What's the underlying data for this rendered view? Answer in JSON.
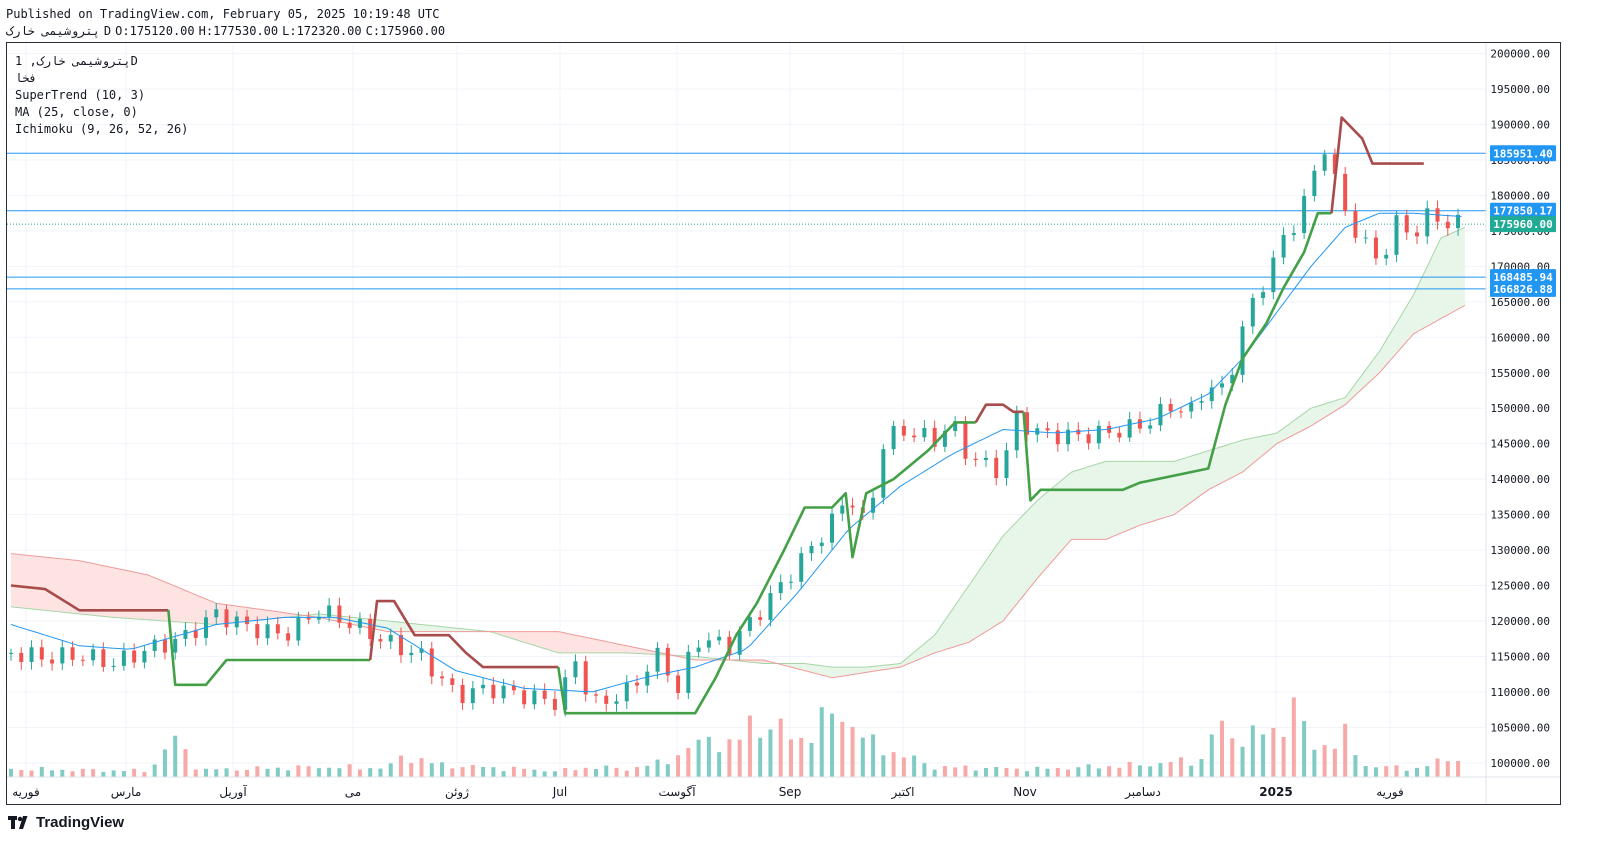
{
  "header": {
    "published": "Published on TradingView.com, February 05, 2025 10:19:48 UTC",
    "symbol": "پتروشیمی خارک",
    "timeframe": "D",
    "ohlc": {
      "open": "O:175120.00",
      "high": "H:177530.00",
      "low": "L:172320.00",
      "close": "C:175960.00"
    }
  },
  "legend": {
    "title": "پتروشیمی خارک, 1D",
    "subtitle": "فخا",
    "indicators": [
      "SuperTrend (10, 3)",
      "MA (25, close, 0)",
      "Ichimoku (9, 26, 52, 26)"
    ]
  },
  "footer": {
    "brand": "TradingView"
  },
  "colors": {
    "up": "#26a69a",
    "down": "#ef5350",
    "vol_up": "#80cbc4",
    "vol_down": "#f7a9a7",
    "st_up": "#43a047",
    "st_down": "#a84b4b",
    "ma": "#2196f3",
    "hline": "#2196f3",
    "cloud_up": "#e8f5e9",
    "cloud_down": "#fde4e2",
    "span_a": "#a5d6a7",
    "span_b": "#ef9a9a"
  },
  "chart_data": {
    "type": "candlestick",
    "y_axis": {
      "ticks": [
        100000,
        105000,
        110000,
        115000,
        120000,
        125000,
        130000,
        135000,
        140000,
        145000,
        150000,
        155000,
        160000,
        165000,
        170000,
        175000,
        180000,
        185000,
        190000,
        195000,
        200000
      ],
      "tick_labels": [
        "100000.00",
        "105000.00",
        "110000.00",
        "115000.00",
        "120000.00",
        "125000.00",
        "130000.00",
        "135000.00",
        "140000.00",
        "145000.00",
        "150000.00",
        "155000.00",
        "160000.00",
        "165000.00",
        "170000.00",
        "175000.00",
        "180000.00",
        "185000.00",
        "190000.00",
        "195000.00",
        "200000.00"
      ],
      "ylim": [
        98000,
        201500
      ]
    },
    "x_axis": {
      "labels": [
        "فوریه",
        "مارس",
        "آوریل",
        "می",
        "ژوئن",
        "Jul",
        "آگوست",
        "Sep",
        "اکتبر",
        "Nov",
        "دسامبر",
        "2025",
        "فوریه"
      ]
    },
    "horizontal_lines": [
      {
        "value": 185951.4,
        "label": "185951.40"
      },
      {
        "value": 177850.17,
        "label": "177850.17"
      },
      {
        "value": 168485.94,
        "label": "168485.94"
      },
      {
        "value": 166826.88,
        "label": "166826.88"
      }
    ],
    "last_price": {
      "value": 175960.0,
      "label": "175960.00"
    },
    "close_path": [
      {
        "i": 0,
        "v": 115500
      },
      {
        "i": 10,
        "v": 114800
      },
      {
        "i": 20,
        "v": 115200
      },
      {
        "i": 30,
        "v": 114000
      },
      {
        "i": 40,
        "v": 116000
      },
      {
        "i": 50,
        "v": 117500
      },
      {
        "i": 60,
        "v": 121000
      },
      {
        "i": 70,
        "v": 119000
      },
      {
        "i": 80,
        "v": 118000
      },
      {
        "i": 90,
        "v": 121500
      },
      {
        "i": 100,
        "v": 119500
      },
      {
        "i": 110,
        "v": 117000
      },
      {
        "i": 120,
        "v": 115000
      },
      {
        "i": 130,
        "v": 109500
      },
      {
        "i": 140,
        "v": 110500
      },
      {
        "i": 150,
        "v": 109500
      },
      {
        "i": 160,
        "v": 108500
      },
      {
        "i": 165,
        "v": 114500
      },
      {
        "i": 170,
        "v": 108000
      },
      {
        "i": 180,
        "v": 110000
      },
      {
        "i": 190,
        "v": 115500
      },
      {
        "i": 195,
        "v": 110000
      },
      {
        "i": 200,
        "v": 117500
      },
      {
        "i": 210,
        "v": 116500
      },
      {
        "i": 220,
        "v": 122000
      },
      {
        "i": 230,
        "v": 128000
      },
      {
        "i": 240,
        "v": 134000
      },
      {
        "i": 245,
        "v": 138000
      },
      {
        "i": 250,
        "v": 133000
      },
      {
        "i": 255,
        "v": 145000
      },
      {
        "i": 260,
        "v": 147000
      },
      {
        "i": 270,
        "v": 145500
      },
      {
        "i": 275,
        "v": 148000
      },
      {
        "i": 280,
        "v": 143000
      },
      {
        "i": 290,
        "v": 141000
      },
      {
        "i": 293,
        "v": 149000
      },
      {
        "i": 300,
        "v": 146500
      },
      {
        "i": 310,
        "v": 146000
      },
      {
        "i": 320,
        "v": 146500
      },
      {
        "i": 330,
        "v": 147500
      },
      {
        "i": 340,
        "v": 150500
      },
      {
        "i": 345,
        "v": 149500
      },
      {
        "i": 350,
        "v": 153500
      },
      {
        "i": 355,
        "v": 152000
      },
      {
        "i": 360,
        "v": 161500
      },
      {
        "i": 365,
        "v": 166500
      },
      {
        "i": 370,
        "v": 172000
      },
      {
        "i": 375,
        "v": 176000
      },
      {
        "i": 380,
        "v": 181500
      },
      {
        "i": 385,
        "v": 188500
      },
      {
        "i": 388,
        "v": 179000
      },
      {
        "i": 392,
        "v": 176000
      },
      {
        "i": 396,
        "v": 173000
      },
      {
        "i": 400,
        "v": 170500
      },
      {
        "i": 405,
        "v": 176000
      },
      {
        "i": 410,
        "v": 174500
      },
      {
        "i": 415,
        "v": 177500
      },
      {
        "i": 420,
        "v": 176000
      },
      {
        "i": 425,
        "v": 175960
      }
    ],
    "supertrend": {
      "segments": [
        {
          "trend": "down",
          "points": [
            [
              0,
              125000
            ],
            [
              10,
              124500
            ],
            [
              20,
              121500
            ],
            [
              46,
              121500
            ]
          ]
        },
        {
          "trend": "up",
          "points": [
            [
              46,
              121500
            ],
            [
              48,
              111000
            ],
            [
              57,
              111000
            ],
            [
              63,
              114500
            ],
            [
              105,
              114500
            ]
          ]
        },
        {
          "trend": "down",
          "points": [
            [
              105,
              114500
            ],
            [
              107,
              122800
            ],
            [
              112,
              122800
            ],
            [
              118,
              118000
            ],
            [
              128,
              118000
            ],
            [
              133,
              115500
            ],
            [
              138,
              113500
            ],
            [
              160,
              113500
            ]
          ]
        },
        {
          "trend": "up",
          "points": [
            [
              160,
              113500
            ],
            [
              162,
              107000
            ],
            [
              200,
              107000
            ],
            [
              206,
              112000
            ],
            [
              212,
              118000
            ],
            [
              218,
              122500
            ],
            [
              226,
              130000
            ],
            [
              232,
              136000
            ],
            [
              240,
              136000
            ],
            [
              244,
              138000
            ],
            [
              246,
              129000
            ],
            [
              250,
              138000
            ],
            [
              258,
              140000
            ],
            [
              268,
              144000
            ],
            [
              276,
              148000
            ],
            [
              282,
              148000
            ]
          ]
        },
        {
          "trend": "down",
          "points": [
            [
              282,
              148000
            ],
            [
              285,
              150500
            ],
            [
              290,
              150500
            ],
            [
              293,
              149500
            ],
            [
              296,
              149500
            ]
          ]
        },
        {
          "trend": "up",
          "points": [
            [
              296,
              149500
            ],
            [
              298,
              137000
            ],
            [
              301,
              138500
            ],
            [
              325,
              138500
            ],
            [
              330,
              139500
            ],
            [
              340,
              140500
            ],
            [
              350,
              141500
            ],
            [
              355,
              150500
            ],
            [
              360,
              157000
            ],
            [
              367,
              162000
            ],
            [
              372,
              167000
            ],
            [
              378,
              172000
            ],
            [
              382,
              177500
            ],
            [
              386,
              177500
            ]
          ]
        },
        {
          "trend": "down",
          "points": [
            [
              386,
              177500
            ],
            [
              389,
              191000
            ],
            [
              395,
              188000
            ],
            [
              398,
              184500
            ],
            [
              413,
              184500
            ]
          ]
        }
      ]
    },
    "ma25_path": [
      [
        0,
        119500
      ],
      [
        20,
        116500
      ],
      [
        35,
        116000
      ],
      [
        60,
        119500
      ],
      [
        80,
        120500
      ],
      [
        95,
        120500
      ],
      [
        110,
        119000
      ],
      [
        130,
        113000
      ],
      [
        150,
        110500
      ],
      [
        170,
        110000
      ],
      [
        185,
        112000
      ],
      [
        200,
        113500
      ],
      [
        215,
        116000
      ],
      [
        230,
        124000
      ],
      [
        245,
        133000
      ],
      [
        260,
        139000
      ],
      [
        275,
        143500
      ],
      [
        290,
        147000
      ],
      [
        305,
        146500
      ],
      [
        320,
        147000
      ],
      [
        335,
        148500
      ],
      [
        350,
        152000
      ],
      [
        360,
        157000
      ],
      [
        370,
        163500
      ],
      [
        380,
        170000
      ],
      [
        390,
        175500
      ],
      [
        400,
        177500
      ],
      [
        410,
        177500
      ],
      [
        425,
        177000
      ]
    ],
    "span_a_path": [
      [
        0,
        122000
      ],
      [
        30,
        120500
      ],
      [
        60,
        119500
      ],
      [
        90,
        121000
      ],
      [
        110,
        120000
      ],
      [
        140,
        118500
      ],
      [
        160,
        115500
      ],
      [
        180,
        115500
      ],
      [
        200,
        115000
      ],
      [
        220,
        114000
      ],
      [
        232,
        114000
      ],
      [
        240,
        113500
      ],
      [
        250,
        113500
      ],
      [
        260,
        114000
      ],
      [
        270,
        118000
      ],
      [
        280,
        125000
      ],
      [
        290,
        132000
      ],
      [
        300,
        137000
      ],
      [
        310,
        141000
      ],
      [
        320,
        142500
      ],
      [
        340,
        142500
      ],
      [
        350,
        144000
      ],
      [
        360,
        145500
      ],
      [
        370,
        146500
      ],
      [
        380,
        150000
      ],
      [
        390,
        151500
      ],
      [
        400,
        158000
      ],
      [
        410,
        166000
      ],
      [
        418,
        174000
      ],
      [
        425,
        175500
      ]
    ],
    "span_b_path": [
      [
        0,
        129500
      ],
      [
        20,
        128500
      ],
      [
        40,
        126500
      ],
      [
        60,
        122500
      ],
      [
        90,
        120500
      ],
      [
        110,
        118500
      ],
      [
        140,
        118500
      ],
      [
        160,
        118500
      ],
      [
        180,
        116500
      ],
      [
        200,
        114500
      ],
      [
        220,
        114500
      ],
      [
        240,
        112000
      ],
      [
        260,
        113500
      ],
      [
        270,
        115500
      ],
      [
        280,
        117000
      ],
      [
        290,
        120000
      ],
      [
        300,
        126000
      ],
      [
        310,
        131500
      ],
      [
        320,
        131500
      ],
      [
        330,
        133500
      ],
      [
        340,
        135000
      ],
      [
        350,
        138500
      ],
      [
        360,
        141000
      ],
      [
        370,
        145000
      ],
      [
        380,
        147500
      ],
      [
        390,
        150500
      ],
      [
        400,
        155000
      ],
      [
        410,
        160500
      ],
      [
        425,
        164500
      ]
    ],
    "volume_path": [
      [
        0,
        8
      ],
      [
        40,
        6
      ],
      [
        48,
        38
      ],
      [
        55,
        7
      ],
      [
        90,
        10
      ],
      [
        110,
        9
      ],
      [
        115,
        22
      ],
      [
        125,
        12
      ],
      [
        160,
        6
      ],
      [
        170,
        10
      ],
      [
        180,
        8
      ],
      [
        190,
        14
      ],
      [
        205,
        40
      ],
      [
        212,
        28
      ],
      [
        215,
        55
      ],
      [
        225,
        47
      ],
      [
        230,
        36
      ],
      [
        240,
        62
      ],
      [
        245,
        60
      ],
      [
        250,
        35
      ],
      [
        270,
        10
      ],
      [
        300,
        8
      ],
      [
        330,
        12
      ],
      [
        350,
        18
      ],
      [
        352,
        65
      ],
      [
        355,
        40
      ],
      [
        370,
        44
      ],
      [
        375,
        75
      ],
      [
        380,
        28
      ],
      [
        390,
        40
      ],
      [
        395,
        12
      ],
      [
        410,
        8
      ],
      [
        425,
        22
      ]
    ],
    "volume_hl": [
      [
        0,
        0
      ],
      [
        40,
        1
      ],
      [
        48,
        1
      ],
      [
        60,
        0
      ],
      [
        100,
        0
      ],
      [
        115,
        1
      ],
      [
        130,
        0
      ],
      [
        165,
        1
      ],
      [
        185,
        1
      ],
      [
        191,
        0
      ],
      [
        200,
        0
      ],
      [
        210,
        1
      ],
      [
        216,
        1
      ],
      [
        226,
        1
      ],
      [
        231,
        1
      ],
      [
        240,
        1
      ],
      [
        248,
        1
      ],
      [
        270,
        0
      ],
      [
        290,
        0
      ],
      [
        330,
        0
      ],
      [
        352,
        1
      ],
      [
        360,
        1
      ],
      [
        373,
        1
      ],
      [
        377,
        0
      ],
      [
        380,
        1
      ],
      [
        390,
        0
      ],
      [
        425,
        1
      ]
    ]
  }
}
